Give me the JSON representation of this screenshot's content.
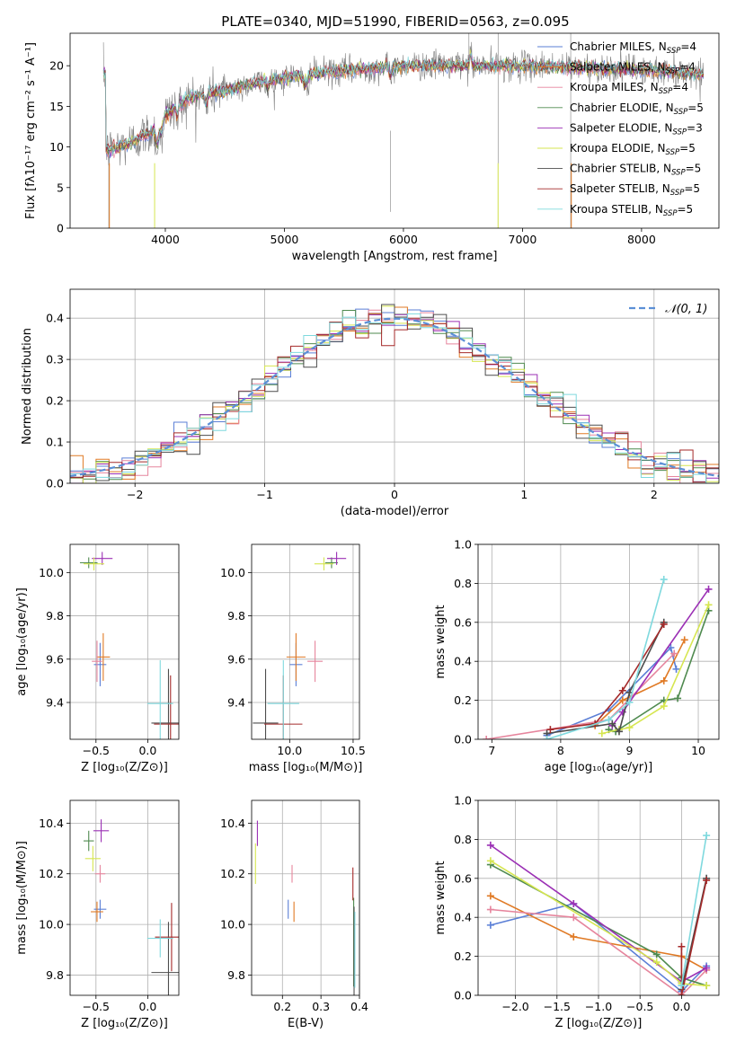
{
  "figure_title": "PLATE=0340, MJD=51990, FIBERID=0563, z=0.095",
  "colors": {
    "chabrier_miles": "#5b7fd6",
    "salpeter_miles": "#e07a25",
    "kroupa_miles": "#e6859d",
    "chabrier_elodie": "#4f8a4f",
    "salpeter_elodie": "#9b30b5",
    "kroupa_elodie": "#d6e650",
    "chabrier_stelib": "#4d4d4d",
    "salpeter_stelib": "#a52a2a",
    "kroupa_stelib": "#7fd9de",
    "gaussian": "#5b8fd6"
  },
  "chart_data": [
    {
      "id": "spectrum",
      "type": "line",
      "xlabel": "wavelength [Angstrom, rest frame]",
      "ylabel": "Flux [fλ10⁻¹⁷ erg cm⁻² s⁻¹ A⁻¹]",
      "xlim": [
        3200,
        8650
      ],
      "ylim": [
        0,
        24
      ],
      "xticks": [
        4000,
        5000,
        6000,
        7000,
        8000
      ],
      "yticks": [
        0,
        5,
        10,
        15,
        20
      ],
      "grid": false,
      "legend": "top-right",
      "legend_entries": [
        {
          "label": "Chabrier MILES, N",
          "sub": "SSP",
          "tail": "=4",
          "color": "#5b7fd6"
        },
        {
          "label": "Salpeter MILES, N",
          "sub": "SSP",
          "tail": "=4",
          "color": "#e07a25"
        },
        {
          "label": "Kroupa MILES, N",
          "sub": "SSP",
          "tail": "=4",
          "color": "#e6859d"
        },
        {
          "label": "Chabrier ELODIE, N",
          "sub": "SSP",
          "tail": "=5",
          "color": "#4f8a4f"
        },
        {
          "label": "Salpeter ELODIE, N",
          "sub": "SSP",
          "tail": "=3",
          "color": "#9b30b5"
        },
        {
          "label": "Kroupa ELODIE, N",
          "sub": "SSP",
          "tail": "=5",
          "color": "#d6e650"
        },
        {
          "label": "Chabrier STELIB, N",
          "sub": "SSP",
          "tail": "=5",
          "color": "#4d4d4d"
        },
        {
          "label": "Salpeter STELIB, N",
          "sub": "SSP",
          "tail": "=5",
          "color": "#a52a2a"
        },
        {
          "label": "Kroupa STELIB, N",
          "sub": "SSP",
          "tail": "=5",
          "color": "#7fd9de"
        }
      ],
      "continuum": [
        [
          3500,
          9.5
        ],
        [
          3700,
          10.5
        ],
        [
          3900,
          12
        ],
        [
          4000,
          14
        ],
        [
          4200,
          16
        ],
        [
          4500,
          17
        ],
        [
          4800,
          18
        ],
        [
          5200,
          19
        ],
        [
          5600,
          19.5
        ],
        [
          6000,
          20
        ],
        [
          6500,
          20
        ],
        [
          7000,
          20
        ],
        [
          7500,
          19.8
        ],
        [
          8000,
          19.5
        ],
        [
          8500,
          19
        ]
      ]
    },
    {
      "id": "residual_hist",
      "type": "line",
      "xlabel": "(data-model)/error",
      "ylabel": "Normed distribution",
      "xlim": [
        -2.5,
        2.5
      ],
      "ylim": [
        0,
        0.47
      ],
      "xticks": [
        -2,
        -1,
        0,
        1,
        2
      ],
      "yticks": [
        0.0,
        0.1,
        0.2,
        0.3,
        0.4
      ],
      "grid": true,
      "legend": "top-right",
      "legend_label": "𝒩(0, 1)",
      "bin_width": 0.1
    },
    {
      "id": "age_vs_Z",
      "type": "scatter",
      "xlabel": "Z [log₁₀(Z/Z⊙)]",
      "ylabel": "age  [log₁₀(age/yr)]",
      "xlim": [
        -0.75,
        0.3
      ],
      "ylim": [
        9.23,
        10.13
      ],
      "xticks": [
        -0.5,
        0.0
      ],
      "yticks": [
        9.4,
        9.6,
        9.8,
        10.0
      ],
      "points": [
        {
          "c": "#5b7fd6",
          "x": -0.46,
          "y": 9.575,
          "xe": 0.12,
          "ye": 0.2
        },
        {
          "c": "#e07a25",
          "x": -0.43,
          "y": 9.61,
          "xe": 0.13,
          "ye": 0.22
        },
        {
          "c": "#e6859d",
          "x": -0.49,
          "y": 9.59,
          "xe": 0.1,
          "ye": 0.19
        },
        {
          "c": "#4f8a4f",
          "x": -0.57,
          "y": 10.045,
          "xe": 0.17,
          "ye": 0.05
        },
        {
          "c": "#9b30b5",
          "x": -0.44,
          "y": 10.065,
          "xe": 0.2,
          "ye": 0.06
        },
        {
          "c": "#d6e650",
          "x": -0.52,
          "y": 10.04,
          "xe": 0.2,
          "ye": 0.06
        },
        {
          "c": "#4d4d4d",
          "x": 0.2,
          "y": 9.305,
          "xe": 0.33,
          "ye": 0.5
        },
        {
          "c": "#a52a2a",
          "x": 0.22,
          "y": 9.3,
          "xe": 0.32,
          "ye": 0.45
        },
        {
          "c": "#7fd9de",
          "x": 0.12,
          "y": 9.395,
          "xe": 0.25,
          "ye": 0.4
        }
      ]
    },
    {
      "id": "age_vs_mass",
      "type": "scatter",
      "xlabel": "mass [log₁₀(M/M⊙)]",
      "ylabel": "",
      "xlim": [
        9.7,
        10.55
      ],
      "ylim": [
        9.23,
        10.13
      ],
      "xticks": [
        10.0,
        10.5
      ],
      "yticks": [
        9.4,
        9.6,
        9.8,
        10.0
      ],
      "points": [
        {
          "c": "#5b7fd6",
          "x": 10.05,
          "y": 9.575,
          "xe": 0.1,
          "ye": 0.2
        },
        {
          "c": "#e07a25",
          "x": 10.05,
          "y": 9.61,
          "xe": 0.15,
          "ye": 0.22
        },
        {
          "c": "#e6859d",
          "x": 10.2,
          "y": 9.59,
          "xe": 0.12,
          "ye": 0.19
        },
        {
          "c": "#4f8a4f",
          "x": 10.33,
          "y": 10.045,
          "xe": 0.1,
          "ye": 0.05
        },
        {
          "c": "#9b30b5",
          "x": 10.37,
          "y": 10.065,
          "xe": 0.15,
          "ye": 0.06
        },
        {
          "c": "#d6e650",
          "x": 10.27,
          "y": 10.04,
          "xe": 0.15,
          "ye": 0.06
        },
        {
          "c": "#4d4d4d",
          "x": 9.81,
          "y": 9.305,
          "xe": 0.2,
          "ye": 0.5
        },
        {
          "c": "#a52a2a",
          "x": 9.95,
          "y": 9.3,
          "xe": 0.3,
          "ye": 0.45
        },
        {
          "c": "#7fd9de",
          "x": 9.95,
          "y": 9.395,
          "xe": 0.25,
          "ye": 0.4
        }
      ]
    },
    {
      "id": "weight_vs_age",
      "type": "line",
      "xlabel": "age  [log₁₀(age/yr)]",
      "ylabel": "mass weight",
      "xlim": [
        6.8,
        10.3
      ],
      "ylim": [
        0,
        1
      ],
      "xticks": [
        7,
        8,
        9,
        10
      ],
      "yticks": [
        0.0,
        0.2,
        0.4,
        0.6,
        0.8,
        1.0
      ],
      "grid": true,
      "series": [
        {
          "c": "#5b7fd6",
          "x": [
            7.8,
            8.7,
            9.6,
            9.68
          ],
          "y": [
            0.02,
            0.15,
            0.47,
            0.36
          ]
        },
        {
          "c": "#e07a25",
          "x": [
            8.5,
            8.9,
            9.5,
            9.8
          ],
          "y": [
            0.07,
            0.2,
            0.3,
            0.51
          ]
        },
        {
          "c": "#e6859d",
          "x": [
            6.92,
            8.7,
            9.65
          ],
          "y": [
            0.0,
            0.1,
            0.44
          ]
        },
        {
          "c": "#4f8a4f",
          "x": [
            8.7,
            8.8,
            9.5,
            9.7,
            10.15
          ],
          "y": [
            0.05,
            0.04,
            0.2,
            0.21,
            0.66
          ]
        },
        {
          "c": "#9b30b5",
          "x": [
            8.75,
            8.9,
            10.15
          ],
          "y": [
            0.07,
            0.14,
            0.77
          ]
        },
        {
          "c": "#d6e650",
          "x": [
            8.6,
            8.85,
            9.0,
            9.5,
            10.15
          ],
          "y": [
            0.03,
            0.05,
            0.06,
            0.17,
            0.69
          ]
        },
        {
          "c": "#4d4d4d",
          "x": [
            7.8,
            8.75,
            8.85,
            9.0,
            9.5
          ],
          "y": [
            0.03,
            0.08,
            0.04,
            0.24,
            0.6
          ]
        },
        {
          "c": "#a52a2a",
          "x": [
            7.85,
            8.5,
            8.9,
            9.5
          ],
          "y": [
            0.05,
            0.08,
            0.25,
            0.59
          ]
        },
        {
          "c": "#7fd9de",
          "x": [
            7.8,
            8.7,
            9.0,
            9.5
          ],
          "y": [
            0.0,
            0.1,
            0.19,
            0.82
          ]
        }
      ]
    },
    {
      "id": "mass_vs_Z",
      "type": "scatter",
      "xlabel": "Z [log₁₀(Z/Z⊙)]",
      "ylabel": "mass [log₁₀(M/M⊙)]",
      "xlim": [
        -0.75,
        0.3
      ],
      "ylim": [
        9.72,
        10.49
      ],
      "xticks": [
        -0.5,
        0.0
      ],
      "yticks": [
        9.8,
        10.0,
        10.2,
        10.4
      ],
      "points": [
        {
          "c": "#5b7fd6",
          "x": -0.46,
          "y": 10.06,
          "xe": 0.12,
          "ye": 0.075
        },
        {
          "c": "#e07a25",
          "x": -0.49,
          "y": 10.05,
          "xe": 0.12,
          "ye": 0.08
        },
        {
          "c": "#e6859d",
          "x": -0.46,
          "y": 10.2,
          "xe": 0.1,
          "ye": 0.07
        },
        {
          "c": "#4f8a4f",
          "x": -0.57,
          "y": 10.33,
          "xe": 0.1,
          "ye": 0.08
        },
        {
          "c": "#9b30b5",
          "x": -0.45,
          "y": 10.37,
          "xe": 0.15,
          "ye": 0.09
        },
        {
          "c": "#d6e650",
          "x": -0.53,
          "y": 10.26,
          "xe": 0.15,
          "ye": 0.1
        },
        {
          "c": "#4d4d4d",
          "x": 0.2,
          "y": 9.81,
          "xe": 0.33,
          "ye": 0.4
        },
        {
          "c": "#a52a2a",
          "x": 0.23,
          "y": 9.95,
          "xe": 0.32,
          "ye": 0.27
        },
        {
          "c": "#7fd9de",
          "x": 0.12,
          "y": 9.945,
          "xe": 0.25,
          "ye": 0.15
        }
      ]
    },
    {
      "id": "mass_vs_EBV",
      "type": "scatter",
      "xlabel": "E(B-V)",
      "ylabel": "",
      "xlim": [
        0.12,
        0.4
      ],
      "ylim": [
        9.72,
        10.49
      ],
      "xticks": [
        0.2,
        0.3,
        0.4
      ],
      "yticks": [
        9.8,
        10.0,
        10.2,
        10.4
      ],
      "points": [
        {
          "c": "#5b7fd6",
          "x": 0.215,
          "y": 10.06,
          "xe": 0,
          "ye": 0.075
        },
        {
          "c": "#e07a25",
          "x": 0.23,
          "y": 10.05,
          "xe": 0,
          "ye": 0.08
        },
        {
          "c": "#e6859d",
          "x": 0.225,
          "y": 10.2,
          "xe": 0,
          "ye": 0.07
        },
        {
          "c": "#4f8a4f",
          "x": 0.385,
          "y": 9.93,
          "xe": 0,
          "ye": 0.35
        },
        {
          "c": "#9b30b5",
          "x": 0.135,
          "y": 10.36,
          "xe": 0,
          "ye": 0.1
        },
        {
          "c": "#d6e650",
          "x": 0.13,
          "y": 10.24,
          "xe": 0,
          "ye": 0.16
        },
        {
          "c": "#4d4d4d",
          "x": 0.386,
          "y": 9.88,
          "xe": 0,
          "ye": 0.38
        },
        {
          "c": "#a52a2a",
          "x": 0.383,
          "y": 10.16,
          "xe": 0,
          "ye": 0.13
        },
        {
          "c": "#7fd9de",
          "x": 0.388,
          "y": 9.9,
          "xe": 0,
          "ye": 0.3
        }
      ]
    },
    {
      "id": "weight_vs_Z",
      "type": "line",
      "xlabel": "Z [log₁₀(Z/Z⊙)]",
      "ylabel": "mass weight",
      "xlim": [
        -2.45,
        0.45
      ],
      "ylim": [
        0,
        1
      ],
      "xticks": [
        -2.0,
        -1.5,
        -1.0,
        -0.5,
        0.0
      ],
      "yticks": [
        0.0,
        0.2,
        0.4,
        0.6,
        0.8,
        1.0
      ],
      "grid": true,
      "series": [
        {
          "c": "#5b7fd6",
          "x": [
            -2.3,
            -1.3,
            0.0,
            0.3
          ],
          "y": [
            0.36,
            0.47,
            0.02,
            0.15
          ]
        },
        {
          "c": "#e07a25",
          "x": [
            -2.3,
            -1.3,
            0.0,
            0.3
          ],
          "y": [
            0.51,
            0.3,
            0.2,
            0.13
          ]
        },
        {
          "c": "#e6859d",
          "x": [
            -2.3,
            -1.3,
            0.0,
            0.3
          ],
          "y": [
            0.44,
            0.4,
            0.0,
            0.13
          ]
        },
        {
          "c": "#4f8a4f",
          "x": [
            -2.3,
            -0.3,
            0.0,
            0.3
          ],
          "y": [
            0.67,
            0.21,
            0.09,
            0.05
          ]
        },
        {
          "c": "#9b30b5",
          "x": [
            -2.3,
            -1.3,
            0.0,
            0.3
          ],
          "y": [
            0.77,
            0.47,
            0.07,
            0.14
          ]
        },
        {
          "c": "#d6e650",
          "x": [
            -2.3,
            -0.3,
            0.0,
            0.3
          ],
          "y": [
            0.69,
            0.17,
            0.06,
            0.05
          ]
        },
        {
          "c": "#4d4d4d",
          "x": [
            0.0,
            0.3
          ],
          "y": [
            0.03,
            0.6
          ]
        },
        {
          "c": "#a52a2a",
          "x": [
            0.0,
            0.0,
            0.3
          ],
          "y": [
            0.25,
            0.0,
            0.59
          ]
        },
        {
          "c": "#7fd9de",
          "x": [
            0.0,
            0.3
          ],
          "y": [
            0.05,
            0.82
          ]
        }
      ]
    }
  ]
}
